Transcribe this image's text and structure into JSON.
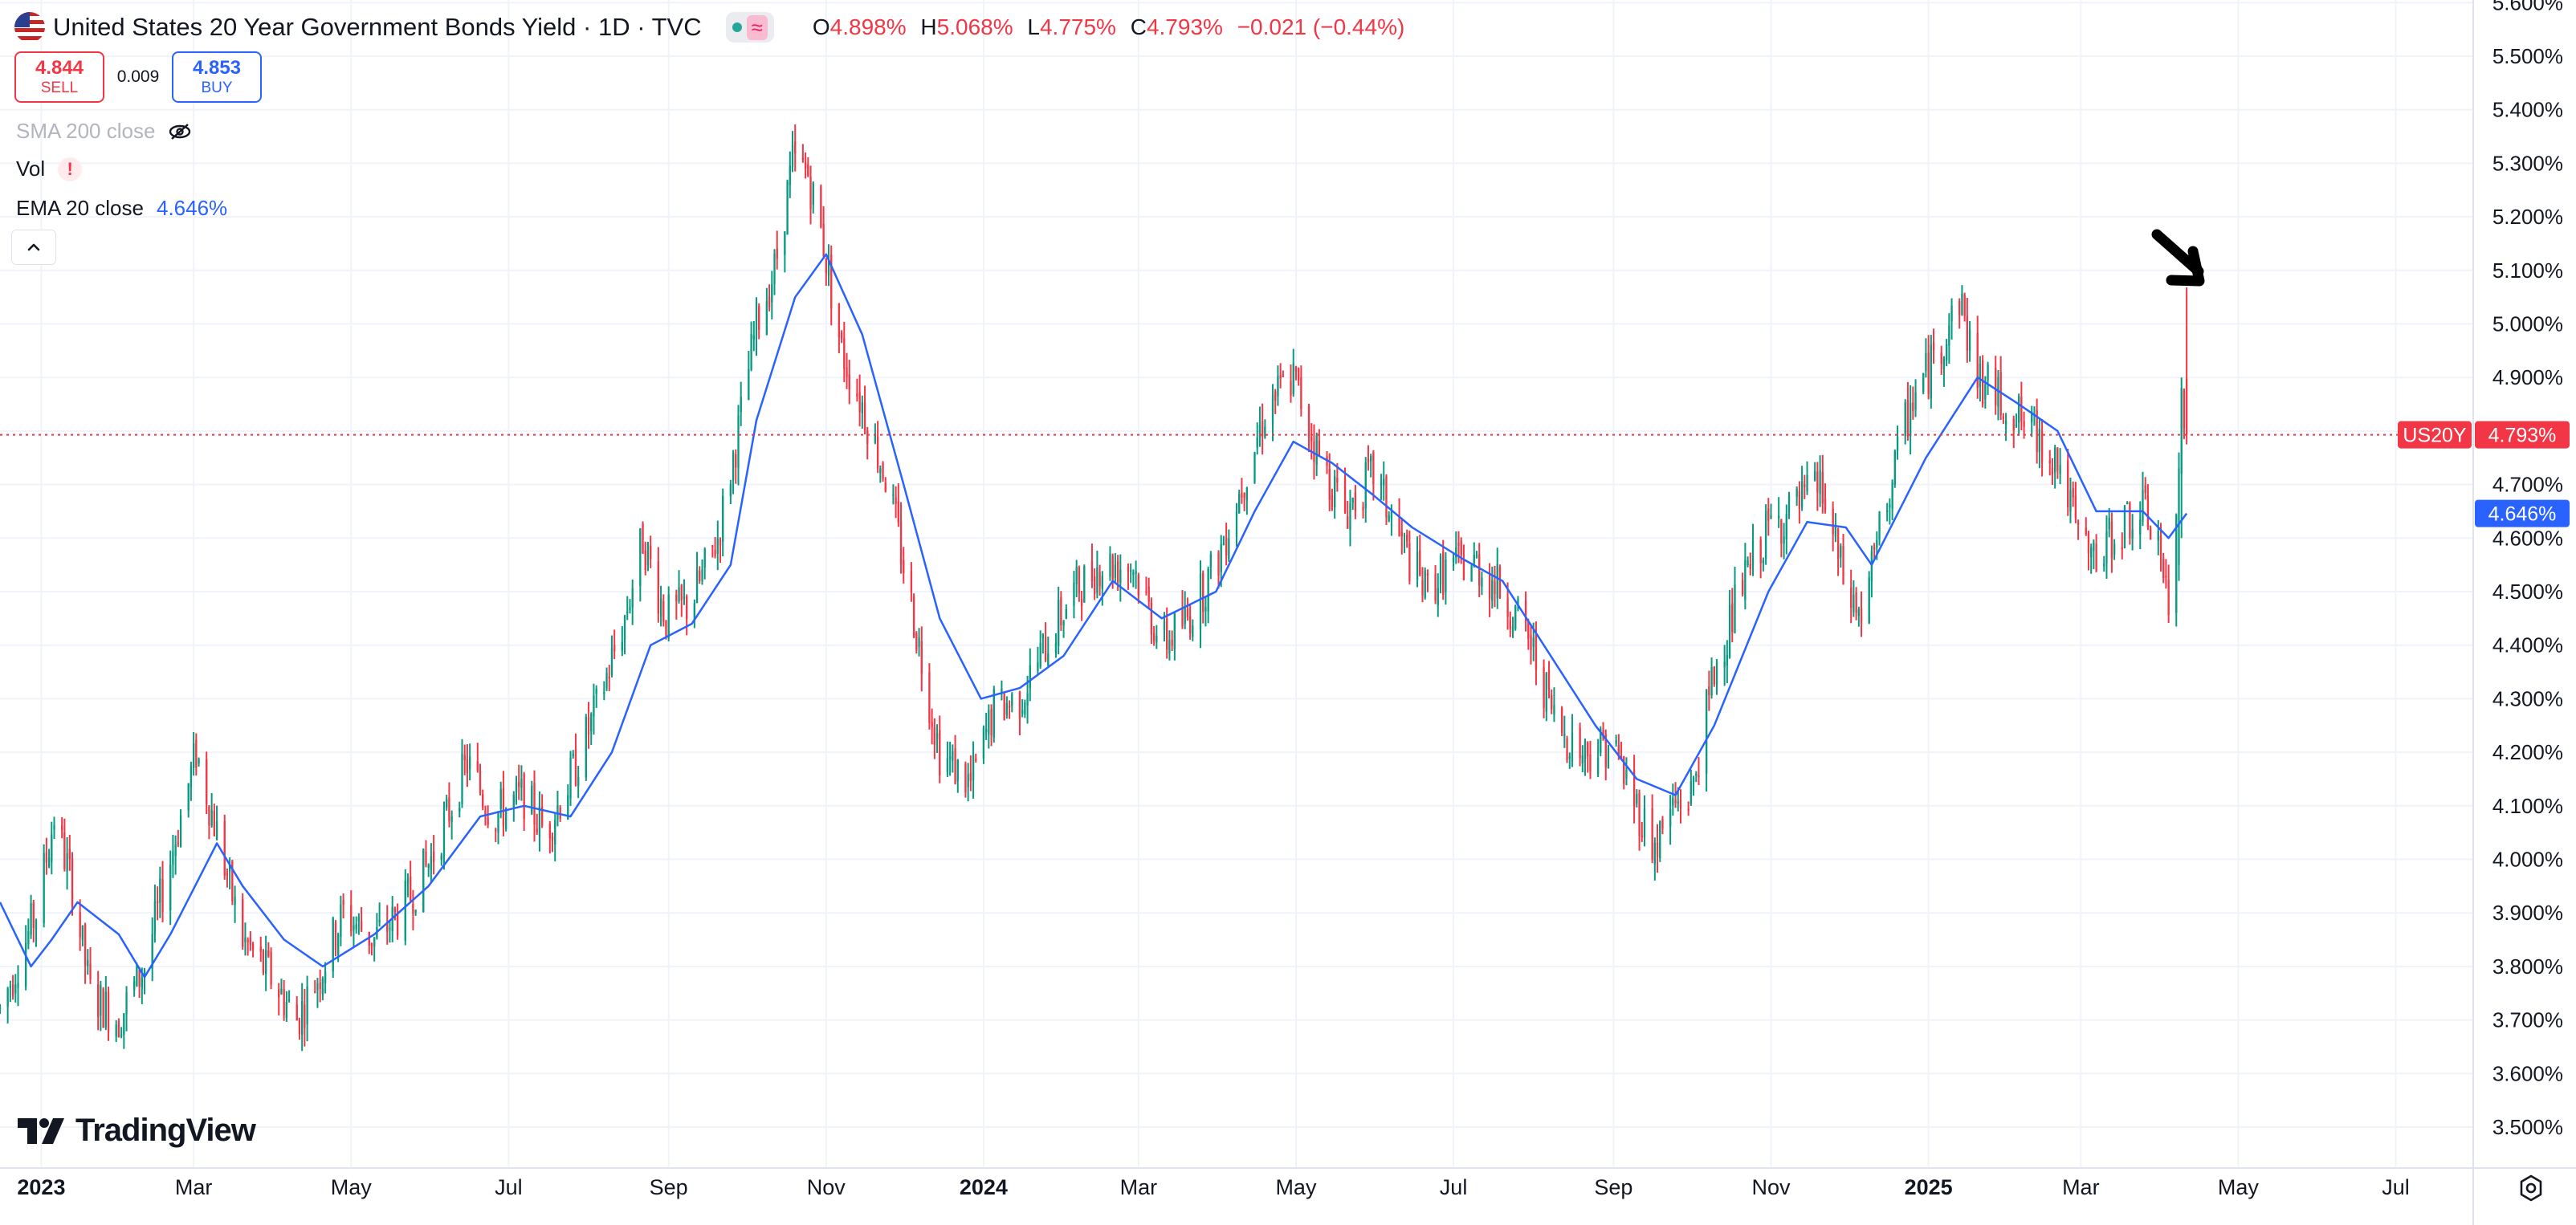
{
  "legend": {
    "title": "United States 20 Year Government Bonds Yield · 1D · TVC",
    "ohlc": [
      {
        "k": "O",
        "v": "4.898%"
      },
      {
        "k": "H",
        "v": "5.068%"
      },
      {
        "k": "L",
        "v": "4.775%"
      },
      {
        "k": "C",
        "v": "4.793%"
      }
    ],
    "change": "−0.021 (−0.44%)"
  },
  "trade": {
    "sell_price": "4.844",
    "sell_label": "SELL",
    "spread": "0.009",
    "buy_price": "4.853",
    "buy_label": "BUY"
  },
  "indicators": {
    "sma": "SMA 200 close",
    "vol": "Vol",
    "ema": "EMA 20 close",
    "ema_value": "4.646%"
  },
  "brand": "TradingView",
  "icons": [
    "us-flag-icon",
    "market-status-icon",
    "eye-off-icon",
    "warning-icon",
    "chevron-up-icon",
    "tradingview-logo-icon",
    "gear-icon"
  ],
  "colors": {
    "up": "#089981",
    "down": "#f23645",
    "ema": "#2962ff",
    "price_line": "#f23645",
    "arrow": "#000000"
  },
  "chart_data": {
    "type": "candlestick",
    "symbol_tag": "US20Y",
    "last_price_label": "4.793%",
    "ema_label": "4.646%",
    "ylim": [
      3.45,
      5.62
    ],
    "xlim": [
      "2022-12-16",
      "2025-07-31"
    ],
    "y_ticks": [
      "3.500%",
      "3.600%",
      "3.700%",
      "3.800%",
      "3.900%",
      "4.000%",
      "4.100%",
      "4.200%",
      "4.300%",
      "4.400%",
      "4.500%",
      "4.600%",
      "4.700%",
      "4.800%",
      "4.900%",
      "5.000%",
      "5.100%",
      "5.200%",
      "5.300%",
      "5.400%",
      "5.500%",
      "5.600%"
    ],
    "x_ticks": [
      {
        "label": "2023",
        "date": "2023-01-01",
        "bold": true
      },
      {
        "label": "Mar",
        "date": "2023-03-01",
        "bold": false
      },
      {
        "label": "May",
        "date": "2023-05-01",
        "bold": false
      },
      {
        "label": "Jul",
        "date": "2023-07-01",
        "bold": false
      },
      {
        "label": "Sep",
        "date": "2023-09-01",
        "bold": false
      },
      {
        "label": "Nov",
        "date": "2023-11-01",
        "bold": false
      },
      {
        "label": "2024",
        "date": "2024-01-01",
        "bold": true
      },
      {
        "label": "Mar",
        "date": "2024-03-01",
        "bold": false
      },
      {
        "label": "May",
        "date": "2024-05-01",
        "bold": false
      },
      {
        "label": "Jul",
        "date": "2024-07-01",
        "bold": false
      },
      {
        "label": "Sep",
        "date": "2024-09-01",
        "bold": false
      },
      {
        "label": "Nov",
        "date": "2024-11-01",
        "bold": false
      },
      {
        "label": "2025",
        "date": "2025-01-01",
        "bold": true
      },
      {
        "label": "Mar",
        "date": "2025-03-01",
        "bold": false
      },
      {
        "label": "May",
        "date": "2025-05-01",
        "bold": false
      },
      {
        "label": "Jul",
        "date": "2025-07-01",
        "bold": false
      }
    ],
    "close_path": [
      [
        "2022-12-16",
        3.72
      ],
      [
        "2022-12-30",
        3.9
      ],
      [
        "2023-01-06",
        4.08
      ],
      [
        "2023-01-13",
        3.95
      ],
      [
        "2023-01-20",
        3.75
      ],
      [
        "2023-01-31",
        3.7
      ],
      [
        "2023-02-10",
        3.8
      ],
      [
        "2023-02-20",
        4.0
      ],
      [
        "2023-03-02",
        4.2
      ],
      [
        "2023-03-10",
        4.05
      ],
      [
        "2023-03-20",
        3.85
      ],
      [
        "2023-03-31",
        3.78
      ],
      [
        "2023-04-10",
        3.7
      ],
      [
        "2023-04-20",
        3.8
      ],
      [
        "2023-04-28",
        3.9
      ],
      [
        "2023-05-10",
        3.85
      ],
      [
        "2023-05-20",
        3.9
      ],
      [
        "2023-06-01",
        4.0
      ],
      [
        "2023-06-15",
        4.18
      ],
      [
        "2023-06-25",
        4.08
      ],
      [
        "2023-07-07",
        4.12
      ],
      [
        "2023-07-15",
        4.05
      ],
      [
        "2023-07-25",
        4.15
      ],
      [
        "2023-08-04",
        4.28
      ],
      [
        "2023-08-15",
        4.45
      ],
      [
        "2023-08-22",
        4.6
      ],
      [
        "2023-08-31",
        4.45
      ],
      [
        "2023-09-10",
        4.48
      ],
      [
        "2023-09-20",
        4.6
      ],
      [
        "2023-09-28",
        4.8
      ],
      [
        "2023-10-05",
        5.0
      ],
      [
        "2023-10-12",
        5.1
      ],
      [
        "2023-10-19",
        5.3
      ],
      [
        "2023-10-25",
        5.28
      ],
      [
        "2023-10-31",
        5.15
      ],
      [
        "2023-11-07",
        4.95
      ],
      [
        "2023-11-15",
        4.85
      ],
      [
        "2023-11-25",
        4.7
      ],
      [
        "2023-12-05",
        4.45
      ],
      [
        "2023-12-15",
        4.2
      ],
      [
        "2023-12-27",
        4.14
      ],
      [
        "2024-01-05",
        4.28
      ],
      [
        "2024-01-15",
        4.3
      ],
      [
        "2024-01-25",
        4.4
      ],
      [
        "2024-02-05",
        4.5
      ],
      [
        "2024-02-15",
        4.55
      ],
      [
        "2024-02-28",
        4.55
      ],
      [
        "2024-03-10",
        4.4
      ],
      [
        "2024-03-20",
        4.45
      ],
      [
        "2024-03-31",
        4.55
      ],
      [
        "2024-04-10",
        4.7
      ],
      [
        "2024-04-20",
        4.85
      ],
      [
        "2024-04-30",
        4.9
      ],
      [
        "2024-05-10",
        4.75
      ],
      [
        "2024-05-20",
        4.65
      ],
      [
        "2024-05-31",
        4.72
      ],
      [
        "2024-06-10",
        4.6
      ],
      [
        "2024-06-20",
        4.5
      ],
      [
        "2024-06-30",
        4.55
      ],
      [
        "2024-07-10",
        4.55
      ],
      [
        "2024-07-20",
        4.5
      ],
      [
        "2024-07-31",
        4.4
      ],
      [
        "2024-08-10",
        4.25
      ],
      [
        "2024-08-20",
        4.2
      ],
      [
        "2024-08-31",
        4.22
      ],
      [
        "2024-09-10",
        4.1
      ],
      [
        "2024-09-17",
        4.02
      ],
      [
        "2024-09-24",
        4.1
      ],
      [
        "2024-10-01",
        4.12
      ],
      [
        "2024-10-10",
        4.35
      ],
      [
        "2024-10-20",
        4.5
      ],
      [
        "2024-10-31",
        4.62
      ],
      [
        "2024-11-10",
        4.65
      ],
      [
        "2024-11-20",
        4.7
      ],
      [
        "2024-11-30",
        4.5
      ],
      [
        "2024-12-06",
        4.45
      ],
      [
        "2024-12-15",
        4.65
      ],
      [
        "2024-12-25",
        4.85
      ],
      [
        "2025-01-05",
        4.95
      ],
      [
        "2025-01-13",
        5.05
      ],
      [
        "2025-01-20",
        4.9
      ],
      [
        "2025-01-31",
        4.85
      ],
      [
        "2025-02-10",
        4.8
      ],
      [
        "2025-02-20",
        4.75
      ],
      [
        "2025-02-28",
        4.6
      ],
      [
        "2025-03-07",
        4.55
      ],
      [
        "2025-03-15",
        4.62
      ],
      [
        "2025-03-25",
        4.65
      ],
      [
        "2025-03-31",
        4.6
      ],
      [
        "2025-04-04",
        4.45
      ],
      [
        "2025-04-08",
        4.7
      ],
      [
        "2025-04-10",
        4.8
      ],
      [
        "2025-04-11",
        4.793
      ]
    ],
    "ema20_path": [
      [
        "2022-12-16",
        3.92
      ],
      [
        "2022-12-28",
        3.8
      ],
      [
        "2023-01-05",
        3.85
      ],
      [
        "2023-01-15",
        3.92
      ],
      [
        "2023-01-31",
        3.86
      ],
      [
        "2023-02-10",
        3.78
      ],
      [
        "2023-02-20",
        3.86
      ],
      [
        "2023-03-10",
        4.03
      ],
      [
        "2023-03-20",
        3.95
      ],
      [
        "2023-04-05",
        3.85
      ],
      [
        "2023-04-20",
        3.8
      ],
      [
        "2023-05-10",
        3.86
      ],
      [
        "2023-05-31",
        3.95
      ],
      [
        "2023-06-20",
        4.08
      ],
      [
        "2023-07-07",
        4.1
      ],
      [
        "2023-07-25",
        4.08
      ],
      [
        "2023-08-10",
        4.2
      ],
      [
        "2023-08-25",
        4.4
      ],
      [
        "2023-09-10",
        4.44
      ],
      [
        "2023-09-25",
        4.55
      ],
      [
        "2023-10-05",
        4.82
      ],
      [
        "2023-10-20",
        5.05
      ],
      [
        "2023-11-01",
        5.13
      ],
      [
        "2023-11-15",
        4.98
      ],
      [
        "2023-12-01",
        4.7
      ],
      [
        "2023-12-15",
        4.45
      ],
      [
        "2023-12-31",
        4.3
      ],
      [
        "2024-01-15",
        4.32
      ],
      [
        "2024-02-01",
        4.38
      ],
      [
        "2024-02-20",
        4.52
      ],
      [
        "2024-03-10",
        4.45
      ],
      [
        "2024-03-31",
        4.5
      ],
      [
        "2024-04-15",
        4.65
      ],
      [
        "2024-04-30",
        4.78
      ],
      [
        "2024-05-15",
        4.74
      ],
      [
        "2024-05-31",
        4.68
      ],
      [
        "2024-06-15",
        4.62
      ],
      [
        "2024-07-05",
        4.56
      ],
      [
        "2024-07-20",
        4.52
      ],
      [
        "2024-08-05",
        4.4
      ],
      [
        "2024-08-25",
        4.25
      ],
      [
        "2024-09-10",
        4.15
      ],
      [
        "2024-09-25",
        4.12
      ],
      [
        "2024-10-10",
        4.25
      ],
      [
        "2024-10-31",
        4.5
      ],
      [
        "2024-11-15",
        4.63
      ],
      [
        "2024-11-30",
        4.62
      ],
      [
        "2024-12-10",
        4.55
      ],
      [
        "2024-12-31",
        4.75
      ],
      [
        "2025-01-20",
        4.9
      ],
      [
        "2025-02-05",
        4.85
      ],
      [
        "2025-02-20",
        4.8
      ],
      [
        "2025-03-07",
        4.65
      ],
      [
        "2025-03-25",
        4.65
      ],
      [
        "2025-04-04",
        4.6
      ],
      [
        "2025-04-11",
        4.646
      ]
    ],
    "last_candles": [
      {
        "date": "2025-04-08",
        "o": 4.55,
        "h": 4.76,
        "l": 4.52,
        "c": 4.73
      },
      {
        "date": "2025-04-09",
        "o": 4.72,
        "h": 4.9,
        "l": 4.6,
        "c": 4.88
      },
      {
        "date": "2025-04-11",
        "o": 4.898,
        "h": 5.068,
        "l": 4.775,
        "c": 4.793
      }
    ]
  }
}
